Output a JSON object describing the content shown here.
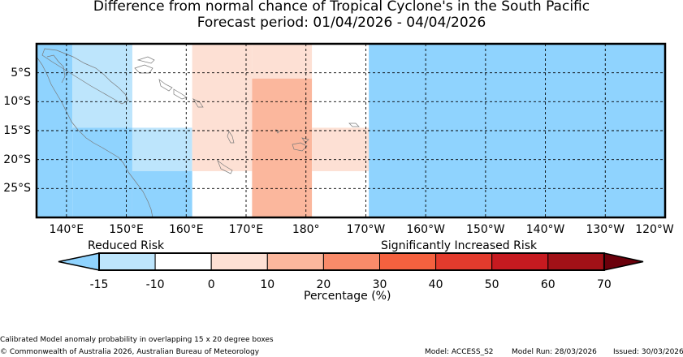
{
  "title": "Difference from normal chance of Tropical Cyclone's in the South Pacific",
  "subtitle": "Forecast period: 01/04/2026 - 04/04/2026",
  "map": {
    "lon_labels": [
      "140°E",
      "150°E",
      "160°E",
      "170°E",
      "180°",
      "170°W",
      "160°W",
      "150°W",
      "140°W",
      "130°W",
      "120°W"
    ],
    "lat_labels": [
      "5°S",
      "10°S",
      "15°S",
      "20°S",
      "25°S"
    ],
    "cells": [
      {
        "lon": [
          135,
          141
        ],
        "lat": [
          0,
          30
        ],
        "color": "#8fd3fe"
      },
      {
        "lon": [
          141,
          151
        ],
        "lat": [
          0,
          14.5
        ],
        "color": "#bde5fc"
      },
      {
        "lon": [
          141,
          151
        ],
        "lat": [
          14.5,
          30
        ],
        "color": "#8fd3fe"
      },
      {
        "lon": [
          151,
          161
        ],
        "lat": [
          14.5,
          22
        ],
        "color": "#bde5fc"
      },
      {
        "lon": [
          151,
          161
        ],
        "lat": [
          22,
          30
        ],
        "color": "#8fd3fe"
      },
      {
        "lon": [
          161,
          171
        ],
        "lat": [
          0,
          22
        ],
        "color": "#fde0d4"
      },
      {
        "lon": [
          171,
          181
        ],
        "lat": [
          0,
          6
        ],
        "color": "#fde0d4"
      },
      {
        "lon": [
          171,
          181
        ],
        "lat": [
          6,
          30
        ],
        "color": "#fbb79d"
      },
      {
        "lon": [
          181,
          190.5
        ],
        "lat": [
          14.5,
          22
        ],
        "color": "#fde0d4"
      },
      {
        "lon": [
          190.5,
          240
        ],
        "lat": [
          0,
          30
        ],
        "color": "#8fd3fe"
      }
    ]
  },
  "colorbar": {
    "reduced_label": "Reduced Risk",
    "increased_label": "Significantly Increased Risk",
    "ticks": [
      "-15",
      "-10",
      "0",
      "10",
      "20",
      "30",
      "40",
      "50",
      "60",
      "70"
    ],
    "colors": [
      "#8fd3fe",
      "#bde5fc",
      "#ffffff",
      "#fde0d4",
      "#fbb79d",
      "#f98b6a",
      "#f5613f",
      "#e33b2d",
      "#c61a20",
      "#a11117",
      "#6b000b"
    ],
    "xlabel": "Percentage (%)"
  },
  "footer": {
    "method": "Calibrated Model anomaly probability in overlapping 15 x 20 degree boxes",
    "copyright": "© Commonwealth of Australia 2026, Australian Bureau of Meteorology",
    "model": "Model: ACCESS_S2",
    "model_run": "Model Run: 28/03/2026",
    "issued": "Issued: 30/03/2026"
  }
}
